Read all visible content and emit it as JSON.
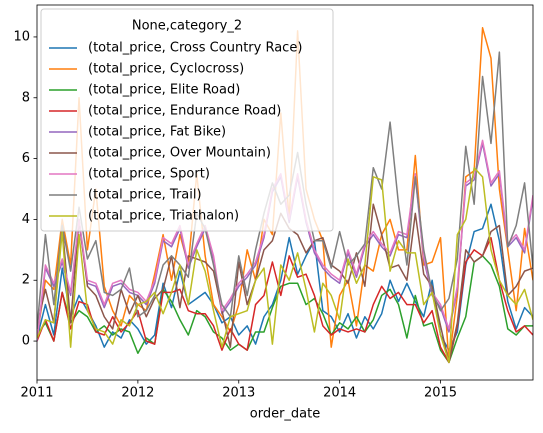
{
  "chart_data": {
    "type": "line",
    "x": [
      0,
      1,
      2,
      3,
      4,
      5,
      6,
      7,
      8,
      9,
      10,
      11,
      12,
      13,
      14,
      15,
      16,
      17,
      18,
      19,
      20,
      21,
      22,
      23,
      24,
      25,
      26,
      27,
      28,
      29,
      30,
      31,
      32,
      33,
      34,
      35,
      36,
      37,
      38,
      39,
      40,
      41,
      42,
      43,
      44,
      45,
      46,
      47,
      48,
      49,
      50,
      51,
      52,
      53,
      54,
      55,
      56,
      57,
      58,
      59
    ],
    "xlim": [
      0,
      59
    ],
    "xticks": [
      {
        "value": 0,
        "label": "2011"
      },
      {
        "value": 12,
        "label": "2012"
      },
      {
        "value": 24,
        "label": "2013"
      },
      {
        "value": 36,
        "label": "2014"
      },
      {
        "value": 48,
        "label": "2015"
      }
    ],
    "xlabel": "order_date",
    "ylim": [
      -1.28,
      11.05
    ],
    "yticks": [
      0,
      2,
      4,
      6,
      8,
      10
    ],
    "legend_title": "None,category_2",
    "legend": "upper left",
    "series": [
      {
        "name": "(total_price, Cross Country Race)",
        "color": "#1f77b4",
        "values": [
          0.1,
          1.2,
          0.2,
          2.4,
          0.8,
          1.5,
          1.0,
          0.5,
          -0.2,
          0.3,
          0.1,
          0.7,
          0.4,
          -0.1,
          0.2,
          1.9,
          1.1,
          2.3,
          1.2,
          1.4,
          1.6,
          1.2,
          0.6,
          0.8,
          0.2,
          0.5,
          -0.1,
          0.8,
          1.2,
          2.0,
          3.4,
          2.2,
          2.8,
          3.3,
          1.0,
          0.8,
          0.3,
          0.9,
          0.1,
          0.8,
          0.4,
          0.9,
          2.0,
          1.3,
          1.9,
          1.3,
          0.8,
          2.0,
          0.2,
          -0.3,
          0.3,
          2.5,
          3.6,
          3.7,
          4.5,
          3.3,
          1.3,
          0.4,
          1.1,
          0.8
        ]
      },
      {
        "name": "(total_price, Cyclocross)",
        "color": "#ff7f0e",
        "values": [
          0.1,
          2.0,
          1.7,
          4.0,
          2.5,
          8.0,
          3.0,
          5.0,
          1.8,
          1.0,
          0.5,
          1.5,
          1.2,
          1.0,
          2.2,
          3.5,
          2.0,
          3.5,
          2.5,
          5.5,
          2.8,
          1.2,
          0.8,
          0.3,
          1.2,
          3.0,
          2.0,
          4.0,
          3.5,
          7.5,
          4.0,
          10.2,
          5.0,
          4.0,
          3.3,
          -0.2,
          1.5,
          2.0,
          0.5,
          2.5,
          2.3,
          3.5,
          4.0,
          3.0,
          3.0,
          6.1,
          2.5,
          2.6,
          3.4,
          -0.7,
          1.5,
          5.4,
          5.6,
          10.3,
          9.3,
          5.0,
          3.0,
          1.0,
          3.7,
          2.0
        ]
      },
      {
        "name": "(total_price, Elite Road)",
        "color": "#2ca02c",
        "values": [
          0.2,
          0.6,
          0.0,
          1.6,
          0.6,
          1.0,
          0.8,
          0.3,
          0.5,
          0.2,
          0.4,
          0.3,
          -0.4,
          0.1,
          -0.1,
          1.7,
          1.3,
          0.7,
          0.2,
          1.0,
          0.8,
          0.3,
          0.1,
          -0.3,
          -0.1,
          -0.3,
          0.3,
          0.3,
          1.1,
          1.8,
          1.9,
          1.9,
          1.2,
          1.4,
          0.9,
          0.2,
          0.6,
          0.4,
          0.8,
          0.3,
          0.7,
          1.5,
          1.7,
          1.2,
          0.1,
          1.5,
          0.5,
          0.6,
          -0.3,
          -0.7,
          0.1,
          0.8,
          2.6,
          2.8,
          2.5,
          1.8,
          0.4,
          0.2,
          0.5,
          0.5
        ]
      },
      {
        "name": "(total_price, Endurance Road)",
        "color": "#d62728",
        "values": [
          0.0,
          0.7,
          0.0,
          1.6,
          0.4,
          1.3,
          1.2,
          0.3,
          0.2,
          0.8,
          0.3,
          0.6,
          1.0,
          0.0,
          -0.1,
          1.6,
          1.6,
          1.7,
          1.0,
          0.9,
          0.9,
          0.5,
          -0.3,
          0.4,
          -0.1,
          -0.3,
          1.2,
          1.5,
          2.6,
          1.5,
          2.8,
          2.1,
          2.2,
          1.5,
          0.5,
          0.2,
          0.4,
          0.3,
          0.4,
          0.3,
          1.2,
          1.8,
          1.4,
          1.6,
          1.2,
          1.2,
          0.6,
          1.0,
          -0.2,
          -0.7,
          0.5,
          2.6,
          3.0,
          2.8,
          3.4,
          2.0,
          1.0,
          0.3,
          0.5,
          0.2
        ]
      },
      {
        "name": "(total_price, Fat Bike)",
        "color": "#9467bd",
        "values": [
          0.0,
          2.4,
          1.8,
          2.6,
          1.5,
          3.9,
          1.9,
          1.8,
          1.1,
          1.8,
          1.9,
          1.6,
          1.5,
          1.2,
          1.9,
          3.3,
          3.1,
          3.7,
          2.4,
          3.1,
          3.7,
          2.7,
          0.9,
          1.3,
          1.8,
          2.1,
          2.5,
          3.4,
          4.9,
          5.4,
          3.9,
          5.4,
          3.9,
          2.9,
          2.4,
          2.1,
          1.9,
          2.9,
          2.1,
          3.1,
          3.5,
          3.1,
          2.8,
          3.5,
          3.4,
          5.4,
          2.7,
          1.5,
          1.1,
          0.3,
          1.7,
          5.1,
          5.3,
          6.5,
          5.1,
          5.5,
          3.1,
          3.4,
          2.9,
          4.7
        ]
      },
      {
        "name": "(total_price, Over Mountain)",
        "color": "#8c564b",
        "values": [
          0.5,
          1.7,
          0.6,
          3.8,
          0.6,
          4.0,
          1.8,
          1.5,
          0.8,
          0.4,
          1.7,
          0.9,
          1.5,
          0.8,
          1.4,
          1.7,
          2.8,
          1.1,
          2.8,
          2.7,
          2.6,
          2.3,
          1.0,
          -0.2,
          2.6,
          1.2,
          2.0,
          3.0,
          3.3,
          4.2,
          3.7,
          3.5,
          2.9,
          3.3,
          3.4,
          2.5,
          2.3,
          1.9,
          2.9,
          1.8,
          4.5,
          3.5,
          2.4,
          2.5,
          2.0,
          4.2,
          2.2,
          1.8,
          0.5,
          -0.7,
          0.6,
          3.0,
          2.6,
          2.8,
          3.6,
          3.8,
          1.5,
          1.8,
          2.3,
          2.4
        ]
      },
      {
        "name": "(total_price, Sport)",
        "color": "#e377c2",
        "values": [
          0.0,
          2.5,
          1.9,
          2.7,
          1.6,
          4.0,
          2.0,
          1.9,
          1.2,
          1.9,
          2.0,
          1.7,
          1.6,
          1.3,
          2.0,
          3.4,
          3.2,
          3.8,
          2.5,
          3.2,
          3.8,
          2.8,
          1.0,
          1.4,
          1.9,
          2.2,
          2.6,
          3.5,
          5.0,
          5.5,
          4.0,
          5.5,
          4.0,
          3.0,
          2.5,
          2.2,
          2.0,
          3.0,
          2.2,
          3.2,
          3.6,
          3.2,
          2.9,
          3.6,
          3.5,
          5.5,
          2.8,
          1.6,
          1.2,
          0.4,
          1.8,
          5.2,
          5.4,
          6.6,
          5.2,
          5.6,
          3.2,
          3.5,
          3.0,
          4.8
        ]
      },
      {
        "name": "(total_price, Trail)",
        "color": "#7f7f7f",
        "values": [
          0.4,
          3.5,
          1.2,
          3.8,
          2.3,
          4.4,
          2.7,
          3.3,
          1.6,
          1.5,
          1.7,
          2.4,
          0.8,
          1.0,
          1.5,
          2.5,
          2.8,
          2.5,
          2.1,
          4.2,
          3.7,
          2.5,
          1.2,
          0.8,
          2.8,
          1.5,
          3.0,
          4.2,
          5.2,
          4.5,
          4.8,
          6.2,
          4.5,
          3.3,
          3.3,
          2.4,
          3.6,
          2.5,
          2.8,
          3.2,
          5.7,
          5.0,
          7.2,
          4.5,
          2.5,
          5.4,
          3.0,
          1.6,
          1.0,
          1.4,
          2.7,
          6.4,
          4.5,
          8.7,
          6.5,
          9.5,
          3.1,
          3.8,
          5.2,
          2.4
        ]
      },
      {
        "name": "(total_price, Triathalon)",
        "color": "#bcbd22",
        "values": [
          0.1,
          0.7,
          0.6,
          3.6,
          -0.2,
          3.5,
          1.0,
          0.4,
          0.3,
          -0.1,
          0.7,
          0.5,
          1.2,
          1.3,
          1.6,
          0.9,
          1.6,
          2.5,
          1.2,
          3.0,
          2.3,
          1.0,
          -0.2,
          0.8,
          0.9,
          1.0,
          2.0,
          2.4,
          -0.1,
          2.5,
          2.0,
          2.9,
          1.7,
          0.3,
          1.9,
          1.5,
          0.7,
          2.7,
          1.9,
          2.5,
          5.4,
          5.3,
          2.3,
          3.3,
          2.9,
          2.9,
          1.2,
          1.6,
          0.2,
          -0.7,
          3.5,
          4.0,
          5.7,
          5.4,
          3.0,
          2.0,
          1.5,
          1.2,
          1.7,
          0.7
        ]
      }
    ]
  }
}
